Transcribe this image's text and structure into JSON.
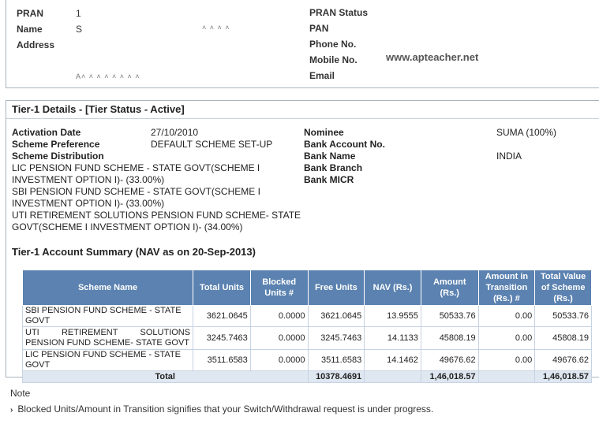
{
  "profile": {
    "left_labels": [
      "PRAN",
      "Name",
      "Address"
    ],
    "pran_value": "1",
    "name_value": "S",
    "name_partial": "˄ ˄ ˄ ˄ ",
    "address_partial": "A˄ ˄ ˄ ˄ ˄ ˄ ˄ ˄ ",
    "right_labels": [
      "PRAN Status",
      "PAN",
      "Phone No.",
      "Mobile No.",
      "Email"
    ],
    "watermark": "www.apteacher.net"
  },
  "tier": {
    "title": "Tier-1 Details - [Tier Status - Active]",
    "activation_label": "Activation Date",
    "activation_value": "27/10/2010",
    "preference_label": "Scheme Preference",
    "preference_value": "DEFAULT SCHEME SET-UP",
    "distribution_label": "Scheme Distribution",
    "distribution_lines": [
      "LIC PENSION FUND SCHEME - STATE GOVT(SCHEME I",
      "INVESTMENT OPTION I)-  (33.00%)",
      "SBI PENSION FUND SCHEME - STATE GOVT(SCHEME I",
      "INVESTMENT OPTION I)-  (33.00%)",
      "UTI RETIREMENT SOLUTIONS PENSION FUND SCHEME- STATE",
      "GOVT(SCHEME I INVESTMENT OPTION I)-  (34.00%)"
    ],
    "right_labels": [
      "Nominee",
      "Bank Account No.",
      "Bank Name",
      "Bank Branch",
      "Bank MICR"
    ],
    "nominee_value": "SUMA (100%)",
    "bank_name_value": "INDIA"
  },
  "summary": {
    "title": "Tier-1 Account Summary (NAV as on 20-Sep-2013)",
    "headers": [
      "Scheme Name",
      "Total Units",
      "Blocked Units #",
      "Free Units",
      "NAV (Rs.)",
      "Amount (Rs.)",
      "Amount in Transition (Rs.) #",
      "Total Value of Scheme (Rs.)"
    ],
    "rows": [
      [
        "SBI PENSION FUND SCHEME - STATE GOVT",
        "3621.0645",
        "0.0000",
        "3621.0645",
        "13.9555",
        "50533.76",
        "0.00",
        "50533.76"
      ],
      [
        "UTI RETIREMENT SOLUTIONS PENSION FUND SCHEME- STATE GOVT",
        "3245.7463",
        "0.0000",
        "3245.7463",
        "14.1133",
        "45808.19",
        "0.00",
        "45808.19"
      ],
      [
        "LIC PENSION FUND SCHEME - STATE GOVT",
        "3511.6583",
        "0.0000",
        "3511.6583",
        "14.1462",
        "49676.62",
        "0.00",
        "49676.62"
      ]
    ],
    "total_label": "Total",
    "total_free_units": "10378.4691",
    "total_amount": "1,46,018.57",
    "total_value": "1,46,018.57"
  },
  "note": {
    "label": "Note",
    "icon": "chevron-right-icon",
    "text": "Blocked Units/Amount in Transition signifies that your Switch/Withdrawal request is under progress."
  }
}
